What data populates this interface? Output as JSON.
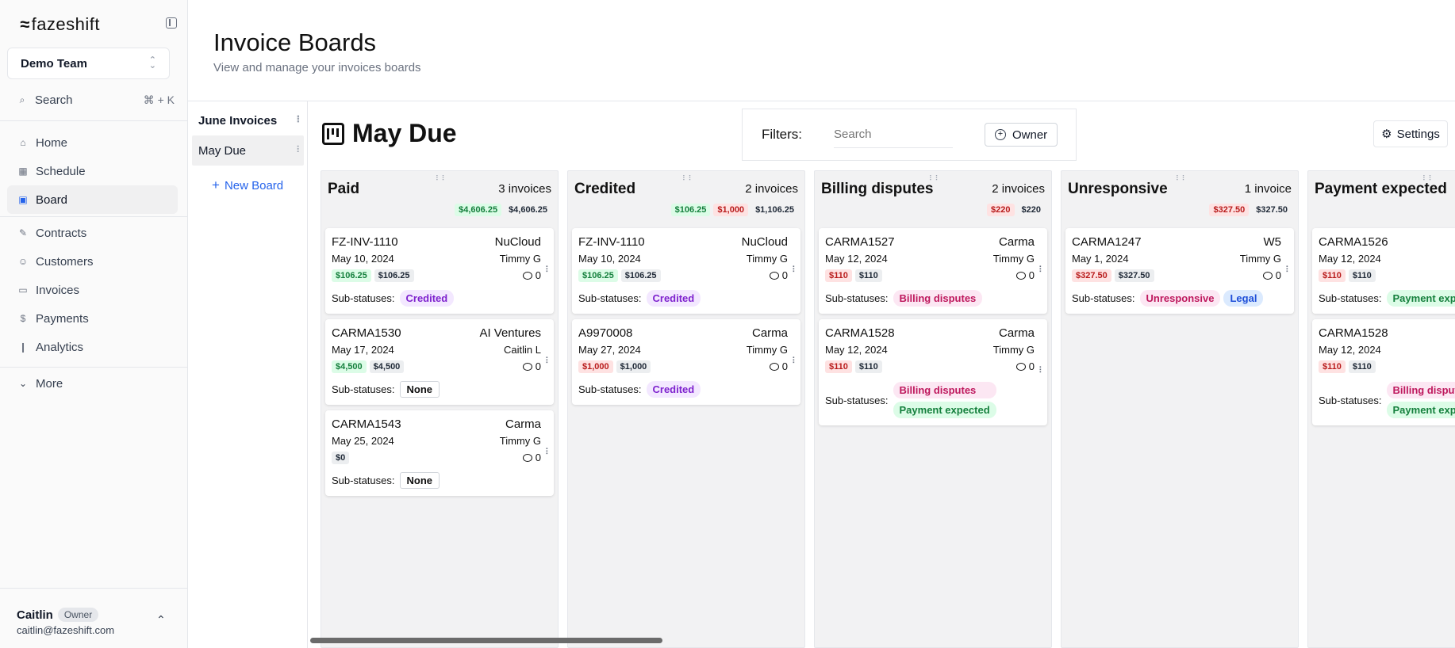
{
  "app": {
    "logo_mark": "≈",
    "logo_text": "fazeshift",
    "team": "Demo Team",
    "search_label": "Search",
    "search_shortcut": "⌘ + K",
    "nav": [
      {
        "label": "Home",
        "icon": "home-icon",
        "glyph": "⌂"
      },
      {
        "label": "Schedule",
        "icon": "calendar-icon",
        "glyph": "▦"
      },
      {
        "label": "Board",
        "icon": "board-icon",
        "glyph": "▣",
        "active": true
      },
      {
        "label": "Contracts",
        "icon": "contract-icon",
        "glyph": "✎"
      },
      {
        "label": "Customers",
        "icon": "users-icon",
        "glyph": "☺"
      },
      {
        "label": "Invoices",
        "icon": "invoice-icon",
        "glyph": "▭"
      },
      {
        "label": "Payments",
        "icon": "dollar-icon",
        "glyph": "$"
      },
      {
        "label": "Analytics",
        "icon": "chart-icon",
        "glyph": "❙"
      }
    ],
    "more_label": "More",
    "user": {
      "name": "Caitlin",
      "role": "Owner",
      "email": "caitlin@fazeshift.com"
    }
  },
  "header": {
    "title": "Invoice Boards",
    "subtitle": "View and manage your invoices boards"
  },
  "boards": {
    "items": [
      "June Invoices",
      "May Due"
    ],
    "active": "May Due",
    "new_label": "New Board"
  },
  "board": {
    "title": "May Due",
    "filters_label": "Filters:",
    "search_placeholder": "Search",
    "owner_label": "Owner",
    "settings_label": "Settings",
    "sub_label": "Sub-statuses:",
    "columns": [
      {
        "title": "Paid",
        "count": "3 invoices",
        "totals": [
          {
            "v": "$4,606.25",
            "c": "green"
          },
          {
            "v": "$4,606.25",
            "c": "plain"
          }
        ],
        "cards": [
          {
            "id": "FZ-INV-1110",
            "customer": "NuCloud",
            "date": "May 10, 2024",
            "owner": "Timmy G",
            "amounts": [
              {
                "v": "$106.25",
                "c": "green"
              },
              {
                "v": "$106.25",
                "c": "gray"
              }
            ],
            "comments": "0",
            "subs": [
              {
                "t": "Credited",
                "c": "purple"
              }
            ]
          },
          {
            "id": "CARMA1530",
            "customer": "AI Ventures",
            "date": "May 17, 2024",
            "owner": "Caitlin L",
            "amounts": [
              {
                "v": "$4,500",
                "c": "green"
              },
              {
                "v": "$4,500",
                "c": "gray"
              }
            ],
            "comments": "0",
            "subs": [
              {
                "t": "None",
                "c": "none"
              }
            ]
          },
          {
            "id": "CARMA1543",
            "customer": "Carma",
            "date": "May 25, 2024",
            "owner": "Timmy G",
            "amounts": [
              {
                "v": "$0",
                "c": "gray"
              }
            ],
            "comments": "0",
            "subs": [
              {
                "t": "None",
                "c": "none"
              }
            ]
          }
        ]
      },
      {
        "title": "Credited",
        "count": "2 invoices",
        "totals": [
          {
            "v": "$106.25",
            "c": "green"
          },
          {
            "v": "$1,000",
            "c": "red"
          },
          {
            "v": "$1,106.25",
            "c": "plain"
          }
        ],
        "cards": [
          {
            "id": "FZ-INV-1110",
            "customer": "NuCloud",
            "date": "May 10, 2024",
            "owner": "Timmy G",
            "amounts": [
              {
                "v": "$106.25",
                "c": "green"
              },
              {
                "v": "$106.25",
                "c": "gray"
              }
            ],
            "comments": "0",
            "subs": [
              {
                "t": "Credited",
                "c": "purple"
              }
            ]
          },
          {
            "id": "A9970008",
            "customer": "Carma",
            "date": "May 27, 2024",
            "owner": "Timmy G",
            "amounts": [
              {
                "v": "$1,000",
                "c": "red"
              },
              {
                "v": "$1,000",
                "c": "gray"
              }
            ],
            "comments": "0",
            "subs": [
              {
                "t": "Credited",
                "c": "purple"
              }
            ]
          }
        ]
      },
      {
        "title": "Billing disputes",
        "count": "2 invoices",
        "totals": [
          {
            "v": "$220",
            "c": "red"
          },
          {
            "v": "$220",
            "c": "plain"
          }
        ],
        "cards": [
          {
            "id": "CARMA1527",
            "customer": "Carma",
            "date": "May 12, 2024",
            "owner": "Timmy G",
            "amounts": [
              {
                "v": "$110",
                "c": "red"
              },
              {
                "v": "$110",
                "c": "gray"
              }
            ],
            "comments": "0",
            "subs": [
              {
                "t": "Billing disputes",
                "c": "pink"
              }
            ]
          },
          {
            "id": "CARMA1528",
            "customer": "Carma",
            "date": "May 12, 2024",
            "owner": "Timmy G",
            "amounts": [
              {
                "v": "$110",
                "c": "red"
              },
              {
                "v": "$110",
                "c": "gray"
              }
            ],
            "comments": "0",
            "subs": [
              {
                "t": "Billing disputes",
                "c": "pink"
              },
              {
                "t": "Payment expected",
                "c": "green"
              }
            ],
            "stacked": true
          }
        ]
      },
      {
        "title": "Unresponsive",
        "count": "1 invoice",
        "totals": [
          {
            "v": "$327.50",
            "c": "red"
          },
          {
            "v": "$327.50",
            "c": "plain"
          }
        ],
        "cards": [
          {
            "id": "CARMA1247",
            "customer": "W5",
            "date": "May 1, 2024",
            "owner": "Timmy G",
            "amounts": [
              {
                "v": "$327.50",
                "c": "red"
              },
              {
                "v": "$327.50",
                "c": "gray"
              }
            ],
            "comments": "0",
            "subs": [
              {
                "t": "Unresponsive",
                "c": "pink"
              },
              {
                "t": "Legal",
                "c": "blue"
              }
            ]
          }
        ]
      },
      {
        "title": "Payment expected",
        "count": "",
        "totals": [],
        "cards": [
          {
            "id": "CARMA1526",
            "customer": "",
            "date": "May 12, 2024",
            "owner": "",
            "amounts": [
              {
                "v": "$110",
                "c": "red"
              },
              {
                "v": "$110",
                "c": "gray"
              }
            ],
            "comments": "",
            "subs": [
              {
                "t": "Payment exp",
                "c": "green"
              }
            ]
          },
          {
            "id": "CARMA1528",
            "customer": "",
            "date": "May 12, 2024",
            "owner": "",
            "amounts": [
              {
                "v": "$110",
                "c": "red"
              },
              {
                "v": "$110",
                "c": "gray"
              }
            ],
            "comments": "",
            "subs": [
              {
                "t": "Billing disput",
                "c": "pink"
              },
              {
                "t": "Payment exp",
                "c": "green"
              }
            ],
            "stacked": true
          }
        ]
      }
    ]
  }
}
